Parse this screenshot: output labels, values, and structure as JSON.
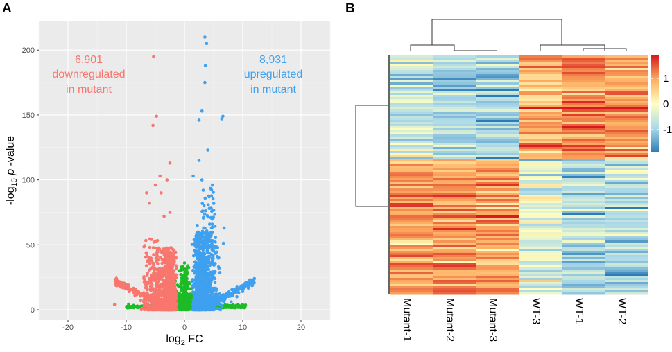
{
  "panel_a_label": "A",
  "panel_b_label": "B",
  "chart_data": [
    {
      "type": "scatter",
      "name": "volcano-plot",
      "xlabel_main": "log",
      "xlabel_sub": "2",
      "xlabel_tail": " FC",
      "ylabel_pre": "-log",
      "ylabel_sub": "10",
      "ylabel_italic": " p",
      "ylabel_tail": " -value",
      "xlim": [
        -25,
        25
      ],
      "ylim": [
        -8,
        222
      ],
      "xticks": [
        -20,
        -10,
        0,
        10,
        20
      ],
      "yticks": [
        0,
        50,
        100,
        150,
        200
      ],
      "grid": true,
      "colors": {
        "down": "#f8766d",
        "up": "#3ea0ef",
        "ns": "#1dbb26",
        "panel_bg": "#ebebeb",
        "grid": "#ffffff"
      },
      "annotations": [
        {
          "group": "down",
          "lines": [
            "6,901",
            "downregulated",
            "in mutant"
          ],
          "color": "#f8766d"
        },
        {
          "group": "up",
          "lines": [
            "8,931",
            "upregulated",
            "in mutant"
          ],
          "color": "#3ea0ef"
        }
      ],
      "series": [
        {
          "name": "downregulated",
          "points": [
            [
              -5.3,
              195
            ],
            [
              -4.8,
              149
            ],
            [
              -5.4,
              142
            ],
            [
              -2.5,
              113
            ],
            [
              -4.2,
              103
            ],
            [
              -3.0,
              100
            ],
            [
              -5.0,
              96
            ],
            [
              -6.5,
              90
            ],
            [
              -4.0,
              90
            ],
            [
              -6.0,
              82
            ],
            [
              -2.5,
              75
            ],
            [
              -3.5,
              72
            ],
            [
              -11.5,
              21
            ],
            [
              -10.5,
              18
            ],
            [
              -9.5,
              14
            ],
            [
              -8.5,
              11
            ],
            [
              -7.5,
              7
            ],
            [
              -12.0,
              4
            ]
          ]
        },
        {
          "name": "upregulated",
          "points": [
            [
              3.5,
              210
            ],
            [
              3.8,
              205
            ],
            [
              3.6,
              188
            ],
            [
              3.5,
              175
            ],
            [
              6.6,
              149
            ],
            [
              6.4,
              147
            ],
            [
              2.5,
              146
            ],
            [
              3.0,
              153
            ],
            [
              4.0,
              123
            ],
            [
              2.5,
              115
            ],
            [
              1.5,
              103
            ],
            [
              4.8,
              96
            ],
            [
              3.0,
              100
            ],
            [
              6.8,
              63
            ],
            [
              2.2,
              65
            ],
            [
              12.0,
              24
            ],
            [
              11.0,
              19
            ],
            [
              10.0,
              14
            ],
            [
              9.0,
              10
            ],
            [
              8.0,
              6
            ]
          ]
        },
        {
          "name": "not-significant",
          "points": [
            [
              0.0,
              36
            ],
            [
              0.5,
              28
            ],
            [
              -0.5,
              20
            ],
            [
              1.0,
              12
            ],
            [
              -1.0,
              8
            ],
            [
              0.3,
              5
            ],
            [
              -8,
              2
            ],
            [
              8,
              2
            ]
          ]
        }
      ]
    },
    {
      "type": "heatmap",
      "name": "expression-heatmap",
      "columns": [
        "Mutant-1",
        "Mutant-2",
        "Mutant-3",
        "WT-3",
        "WT-1",
        "WT-2"
      ],
      "colorbar": {
        "ticks": [
          1,
          0,
          -1
        ],
        "labels": [
          "1",
          "0",
          "-1"
        ],
        "range": [
          -1.9,
          1.9
        ],
        "colors": [
          "#2c7bb6",
          "#abd9e9",
          "#ffffbf",
          "#fdae61",
          "#d7191c"
        ]
      },
      "row_clusters": [
        {
          "name": "upper",
          "means": [
            -0.6,
            -0.9,
            -0.95,
            0.9,
            1.25,
            1.05
          ]
        },
        {
          "name": "lower",
          "means": [
            1.05,
            1.1,
            1.0,
            -0.35,
            -0.9,
            -0.8
          ]
        }
      ]
    }
  ]
}
